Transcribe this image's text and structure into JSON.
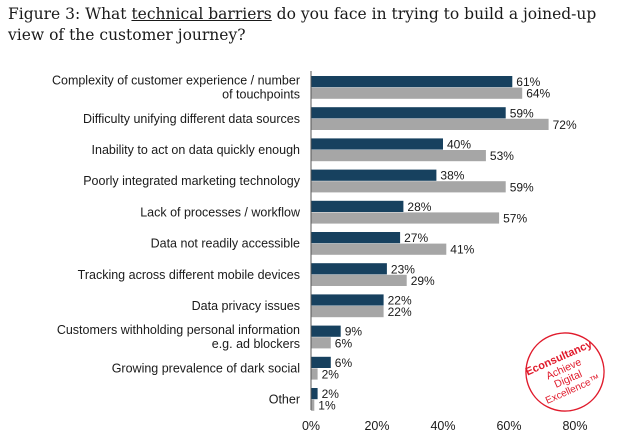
{
  "title": {
    "prefix": "Figure 3: What ",
    "highlight": "technical barriers",
    "suffix": " do you face in trying to build a joined-up view of the customer journey?"
  },
  "colors": {
    "series1": "#17415f",
    "series2": "#a6a6a6",
    "axis": "#555555",
    "logo": "#e01a2b"
  },
  "logo": {
    "lines": [
      "Econsultancy",
      "Achieve",
      "Digital",
      "Excellence™"
    ]
  },
  "chart_data": {
    "type": "bar",
    "orientation": "horizontal",
    "categories": [
      [
        "Complexity of customer experience / number",
        "of touchpoints"
      ],
      [
        "Difficulty unifying different data sources"
      ],
      [
        "Inability to act on data quickly enough"
      ],
      [
        "Poorly integrated marketing technology"
      ],
      [
        "Lack of processes / workflow"
      ],
      [
        "Data not readily accessible"
      ],
      [
        "Tracking across different mobile devices"
      ],
      [
        "Data privacy issues"
      ],
      [
        "Customers withholding personal information",
        "e.g. ad blockers"
      ],
      [
        "Growing prevalence of dark social"
      ],
      [
        "Other"
      ]
    ],
    "series": [
      {
        "values": [
          61,
          59,
          40,
          38,
          28,
          27,
          23,
          22,
          9,
          6,
          2
        ],
        "labels": [
          "61%",
          "59%",
          "40%",
          "38%",
          "28%",
          "27%",
          "23%",
          "22%",
          "9%",
          "6%",
          "2%"
        ]
      },
      {
        "values": [
          64,
          72,
          53,
          59,
          57,
          41,
          29,
          22,
          6,
          2,
          1
        ],
        "labels": [
          "64%",
          "72%",
          "53%",
          "59%",
          "57%",
          "41%",
          "29%",
          "22%",
          "6%",
          "2%",
          "1%"
        ]
      }
    ],
    "xlim": [
      0,
      80
    ],
    "xticks": [
      "0%",
      "20%",
      "40%",
      "60%",
      "80%"
    ],
    "legend": "none",
    "grid": false
  }
}
